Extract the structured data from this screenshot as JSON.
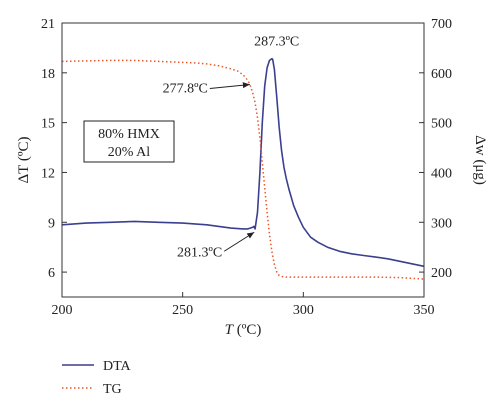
{
  "chart_data": {
    "type": "line",
    "xlabel_var": "T",
    "xlabel_unit": " (ºC)",
    "ylabel_left_var": "ΔT",
    "ylabel_left_unit": " (ºC)",
    "ylabel_right_var": "Δw",
    "ylabel_right_unit": " (μg)",
    "xlim": [
      200,
      350
    ],
    "ylim_left": [
      4.5,
      21
    ],
    "ylim_right": [
      150,
      700
    ],
    "x_ticks": [
      200,
      250,
      300,
      350
    ],
    "y_left_ticks": [
      6,
      9,
      12,
      15,
      18,
      21
    ],
    "y_right_ticks": [
      200,
      300,
      400,
      500,
      600,
      700
    ],
    "grid": false,
    "legend_position": "bottom-left",
    "composition_lines": [
      "80% HMX",
      "20% Al"
    ],
    "colors": {
      "dta": "#3b3f8f",
      "tg": "#e8572a",
      "axis": "#333333"
    },
    "series": [
      {
        "name": "DTA",
        "axis": "left",
        "style": "solid",
        "x": [
          200,
          205,
          210,
          220,
          230,
          240,
          250,
          260,
          270,
          275,
          277,
          278,
          279,
          279.5,
          280,
          281,
          282,
          283,
          284,
          285,
          286,
          287,
          287.3,
          288,
          289,
          290,
          291,
          292,
          293,
          294,
          295,
          296,
          298,
          300,
          303,
          306,
          310,
          315,
          320,
          325,
          330,
          335,
          340,
          345,
          350
        ],
        "y": [
          8.85,
          8.9,
          8.95,
          9.0,
          9.05,
          9.0,
          8.95,
          8.85,
          8.65,
          8.6,
          8.6,
          8.65,
          8.7,
          8.75,
          8.6,
          9.6,
          12.0,
          15.0,
          17.2,
          18.3,
          18.75,
          18.85,
          18.8,
          18.2,
          16.5,
          14.7,
          13.3,
          12.3,
          11.6,
          11.0,
          10.5,
          10.0,
          9.3,
          8.7,
          8.1,
          7.8,
          7.5,
          7.25,
          7.1,
          7.0,
          6.9,
          6.8,
          6.65,
          6.5,
          6.35
        ]
      },
      {
        "name": "TG",
        "axis": "right",
        "style": "dotted",
        "x": [
          200,
          210,
          220,
          230,
          240,
          250,
          255,
          260,
          265,
          270,
          273,
          275,
          277,
          278,
          279,
          280,
          281,
          282,
          283,
          284,
          285,
          286,
          287,
          288,
          289,
          290,
          292,
          295,
          300,
          310,
          320,
          330,
          340,
          350
        ],
        "y": [
          623,
          624,
          625,
          625,
          623,
          621,
          620,
          618,
          614,
          608,
          603,
          596,
          585,
          575,
          560,
          540,
          510,
          470,
          420,
          370,
          320,
          275,
          240,
          215,
          200,
          193,
          190,
          190,
          190,
          190,
          190,
          190,
          189,
          186
        ]
      }
    ],
    "annotations": [
      {
        "text": "287.3ºC",
        "x": 287.3,
        "y": 18.85,
        "axis": "left"
      },
      {
        "text": "277.8ºC",
        "x": 279.5,
        "y": 17.3,
        "axis": "left"
      },
      {
        "text": "281.3ºC",
        "x": 281.3,
        "y": 8.7,
        "axis": "left"
      }
    ]
  }
}
